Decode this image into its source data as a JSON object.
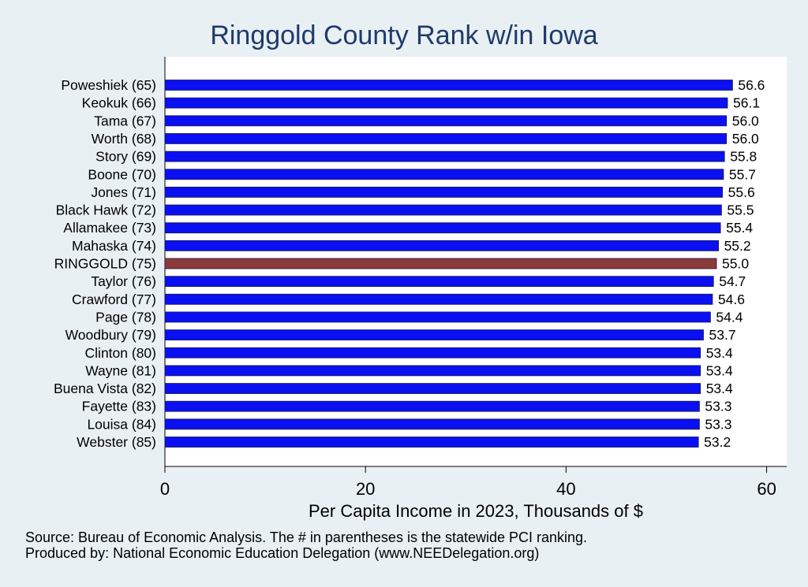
{
  "chart_data": {
    "type": "bar",
    "orientation": "horizontal",
    "title": "Ringgold County Rank w/in Iowa",
    "xlabel": "Per Capita Income in 2023, Thousands of $",
    "xlim": [
      0,
      62
    ],
    "xticks": [
      "0",
      "20",
      "40",
      "60"
    ],
    "xtick_values": [
      0,
      20,
      40,
      60
    ],
    "categories": [
      "Poweshiek (65)",
      "Keokuk (66)",
      "Tama (67)",
      "Worth (68)",
      "Story (69)",
      "Boone (70)",
      "Jones (71)",
      "Black Hawk (72)",
      "Allamakee (73)",
      "Mahaska (74)",
      "RINGGOLD (75)",
      "Taylor (76)",
      "Crawford (77)",
      "Page (78)",
      "Woodbury (79)",
      "Clinton (80)",
      "Wayne (81)",
      "Buena Vista (82)",
      "Fayette (83)",
      "Louisa (84)",
      "Webster (85)"
    ],
    "values": [
      56.6,
      56.1,
      56.0,
      56.0,
      55.8,
      55.7,
      55.6,
      55.5,
      55.4,
      55.2,
      55.0,
      54.7,
      54.6,
      54.4,
      53.7,
      53.4,
      53.4,
      53.4,
      53.3,
      53.3,
      53.2
    ],
    "value_labels": [
      "56.6",
      "56.1",
      "56.0",
      "56.0",
      "55.8",
      "55.7",
      "55.6",
      "55.5",
      "55.4",
      "55.2",
      "55.0",
      "54.7",
      "54.6",
      "54.4",
      "53.7",
      "53.4",
      "53.4",
      "53.4",
      "53.3",
      "53.3",
      "53.2"
    ],
    "highlight": "RINGGOLD (75)",
    "colors": {
      "bar": "#0a10f2",
      "highlight": "#8b3a3a",
      "bar_edge": "#1a1a4a",
      "background": "#e9f0f3",
      "plot_background": "#ffffff",
      "title": "#1f3b6b"
    },
    "grid": false,
    "legend": "none"
  },
  "footer": {
    "source": "Source: Bureau of Economic Analysis. The # in parentheses is the statewide PCI ranking.",
    "produced": "Produced by: National Economic Education Delegation (www.NEEDelegation.org)"
  }
}
